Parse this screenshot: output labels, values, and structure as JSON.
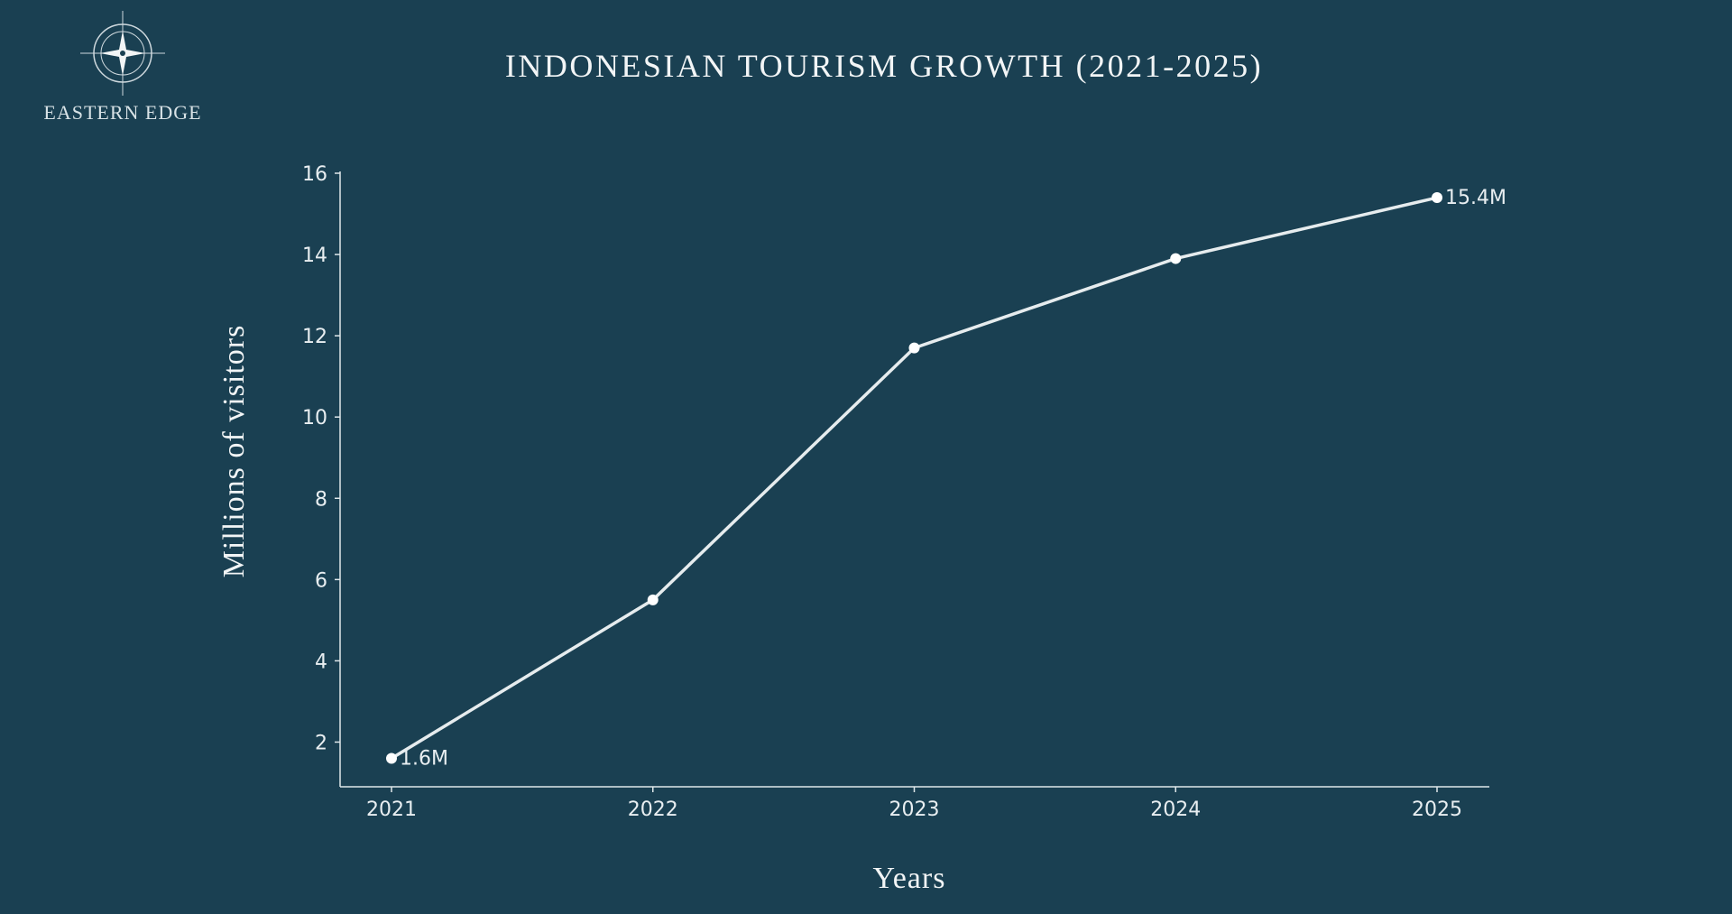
{
  "brand": {
    "name": "EASTERN EDGE",
    "icon": "compass-star-icon"
  },
  "colors": {
    "background": "#1a4052",
    "line": "#e6ecee",
    "text": "#e8eef1"
  },
  "chart_data": {
    "type": "line",
    "title": "INDONESIAN TOURISM GROWTH (2021-2025)",
    "xlabel": "Years",
    "ylabel": "Millions of visitors",
    "categories": [
      "2021",
      "2022",
      "2023",
      "2024",
      "2025"
    ],
    "series": [
      {
        "values": [
          1.6,
          5.5,
          11.7,
          13.9,
          15.4
        ]
      }
    ],
    "data_labels": [
      {
        "index": 0,
        "text": "1.6M"
      },
      {
        "index": 4,
        "text": "15.4M"
      }
    ],
    "ylim": [
      0.9,
      16
    ],
    "yticks": [
      2,
      4,
      6,
      8,
      10,
      12,
      14,
      16
    ],
    "grid": false,
    "legend": "none"
  }
}
